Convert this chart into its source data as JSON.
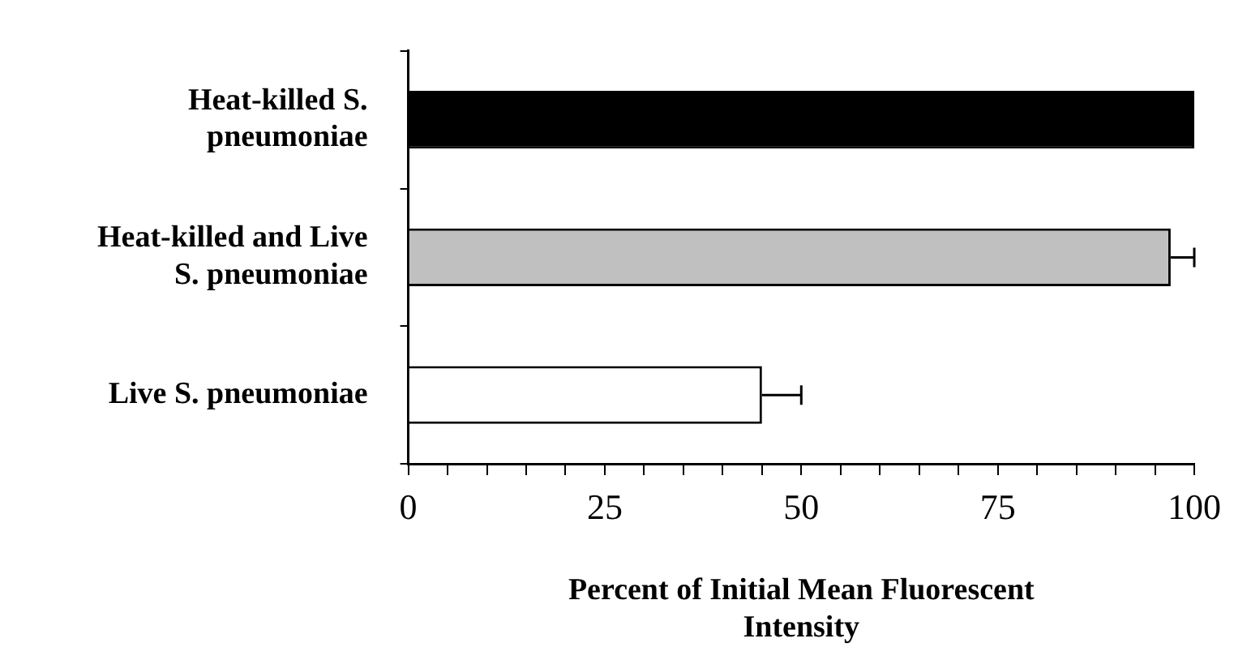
{
  "chart_data": {
    "type": "bar",
    "orientation": "horizontal",
    "categories": [
      "Heat-killed S. pneumoniae",
      "Heat-killed and Live S. pneumoniae",
      "Live S. pneumoniae"
    ],
    "values": [
      100,
      97,
      45
    ],
    "errors": [
      null,
      3,
      5
    ],
    "colors": [
      "#000000",
      "#c0c0c0",
      "#ffffff"
    ],
    "xlabel": "Percent of Initial Mean Fluorescent Intensity",
    "xlim": [
      0,
      100
    ],
    "xticks": [
      0,
      {
        "value": 5,
        "label": null
      },
      {
        "value": 10,
        "label": null
      },
      {
        "value": 15,
        "label": null
      },
      {
        "value": 20,
        "label": null
      },
      25,
      {
        "value": 30,
        "label": null
      },
      {
        "value": 35,
        "label": null
      },
      {
        "value": 40,
        "label": null
      },
      {
        "value": 45,
        "label": null
      },
      50,
      {
        "value": 55,
        "label": null
      },
      {
        "value": 60,
        "label": null
      },
      {
        "value": 65,
        "label": null
      },
      {
        "value": 70,
        "label": null
      },
      75,
      {
        "value": 80,
        "label": null
      },
      {
        "value": 85,
        "label": null
      },
      {
        "value": 90,
        "label": null
      },
      {
        "value": 95,
        "label": null
      },
      100
    ],
    "grid": false,
    "legend": false
  }
}
